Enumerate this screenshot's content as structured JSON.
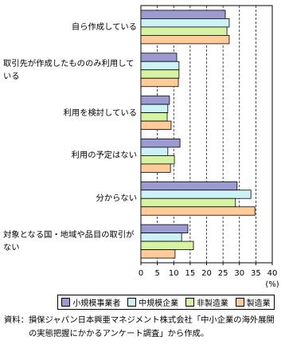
{
  "chart_data": {
    "type": "hbar",
    "categories": [
      "自ら作成している",
      "取引先が作成したもののみ利用している",
      "利用を検討している",
      "利用の予定はない",
      "分からない",
      "対象となる国・地域や品目の取引がない"
    ],
    "series": [
      {
        "name": "小規模事業者",
        "color": "#9b9bd2",
        "values": [
          25.7,
          10.9,
          8.7,
          11.9,
          29.3,
          14.3
        ]
      },
      {
        "name": "中規模企業",
        "color": "#ccf2f7",
        "values": [
          26.9,
          11.6,
          8.2,
          8.2,
          33.5,
          12.4
        ]
      },
      {
        "name": "非製造業",
        "color": "#d6f2a3",
        "values": [
          26.2,
          11.6,
          8.0,
          10.2,
          28.8,
          16.0
        ]
      },
      {
        "name": "製造業",
        "color": "#ffcc99",
        "values": [
          26.9,
          11.4,
          9.2,
          9.0,
          34.7,
          10.4
        ]
      }
    ],
    "xlim": [
      0,
      40
    ],
    "xticks": [
      0,
      5,
      10,
      15,
      20,
      25,
      30,
      35,
      40
    ],
    "x_label": "(%)",
    "grid": true,
    "source": "資料：損保ジャパン日本興亜マネジメント株式会社「中小企業の海外展開の実態把握にかかるアンケート調査」から作成。"
  }
}
